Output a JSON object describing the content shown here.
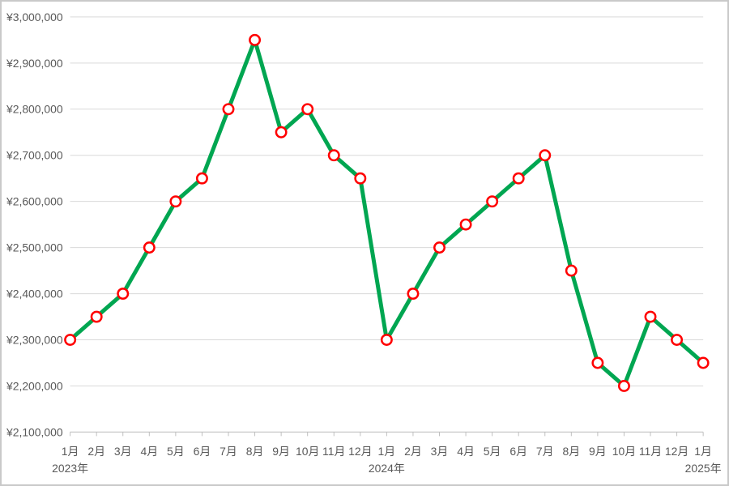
{
  "chart": {
    "background": "#ffffff",
    "frame_border_color": "#c9c9c9"
  },
  "chart_data": {
    "type": "line",
    "title": "",
    "xlabel": "",
    "ylabel": "",
    "legend": "none",
    "grid": true,
    "x_categories": [
      "1月",
      "2月",
      "3月",
      "4月",
      "5月",
      "6月",
      "7月",
      "8月",
      "9月",
      "10月",
      "11月",
      "12月",
      "1月",
      "2月",
      "3月",
      "4月",
      "5月",
      "6月",
      "7月",
      "8月",
      "9月",
      "10月",
      "11月",
      "12月",
      "1月"
    ],
    "values": [
      2300000,
      2350000,
      2400000,
      2500000,
      2600000,
      2650000,
      2800000,
      2950000,
      2750000,
      2800000,
      2700000,
      2650000,
      2300000,
      2400000,
      2500000,
      2550000,
      2600000,
      2650000,
      2700000,
      2450000,
      2250000,
      2200000,
      2350000,
      2300000,
      2250000
    ],
    "year_labels": [
      {
        "index": 0,
        "label": "2023年"
      },
      {
        "index": 12,
        "label": "2024年"
      },
      {
        "index": 24,
        "label": "2025年"
      }
    ],
    "ylim": [
      2100000,
      3000000
    ],
    "y_ticks": [
      2100000,
      2200000,
      2300000,
      2400000,
      2500000,
      2600000,
      2700000,
      2800000,
      2900000,
      3000000
    ],
    "y_tick_labels": [
      "¥2,100,000",
      "¥2,200,000",
      "¥2,300,000",
      "¥2,400,000",
      "¥2,500,000",
      "¥2,600,000",
      "¥2,700,000",
      "¥2,800,000",
      "¥2,900,000",
      "¥3,000,000"
    ],
    "colors": {
      "line": "#00A651",
      "marker_stroke": "#FF0000",
      "marker_fill": "#FFFFFF",
      "grid": "#D9D9D9",
      "axis": "#BFBFBF",
      "text": "#595959"
    }
  }
}
